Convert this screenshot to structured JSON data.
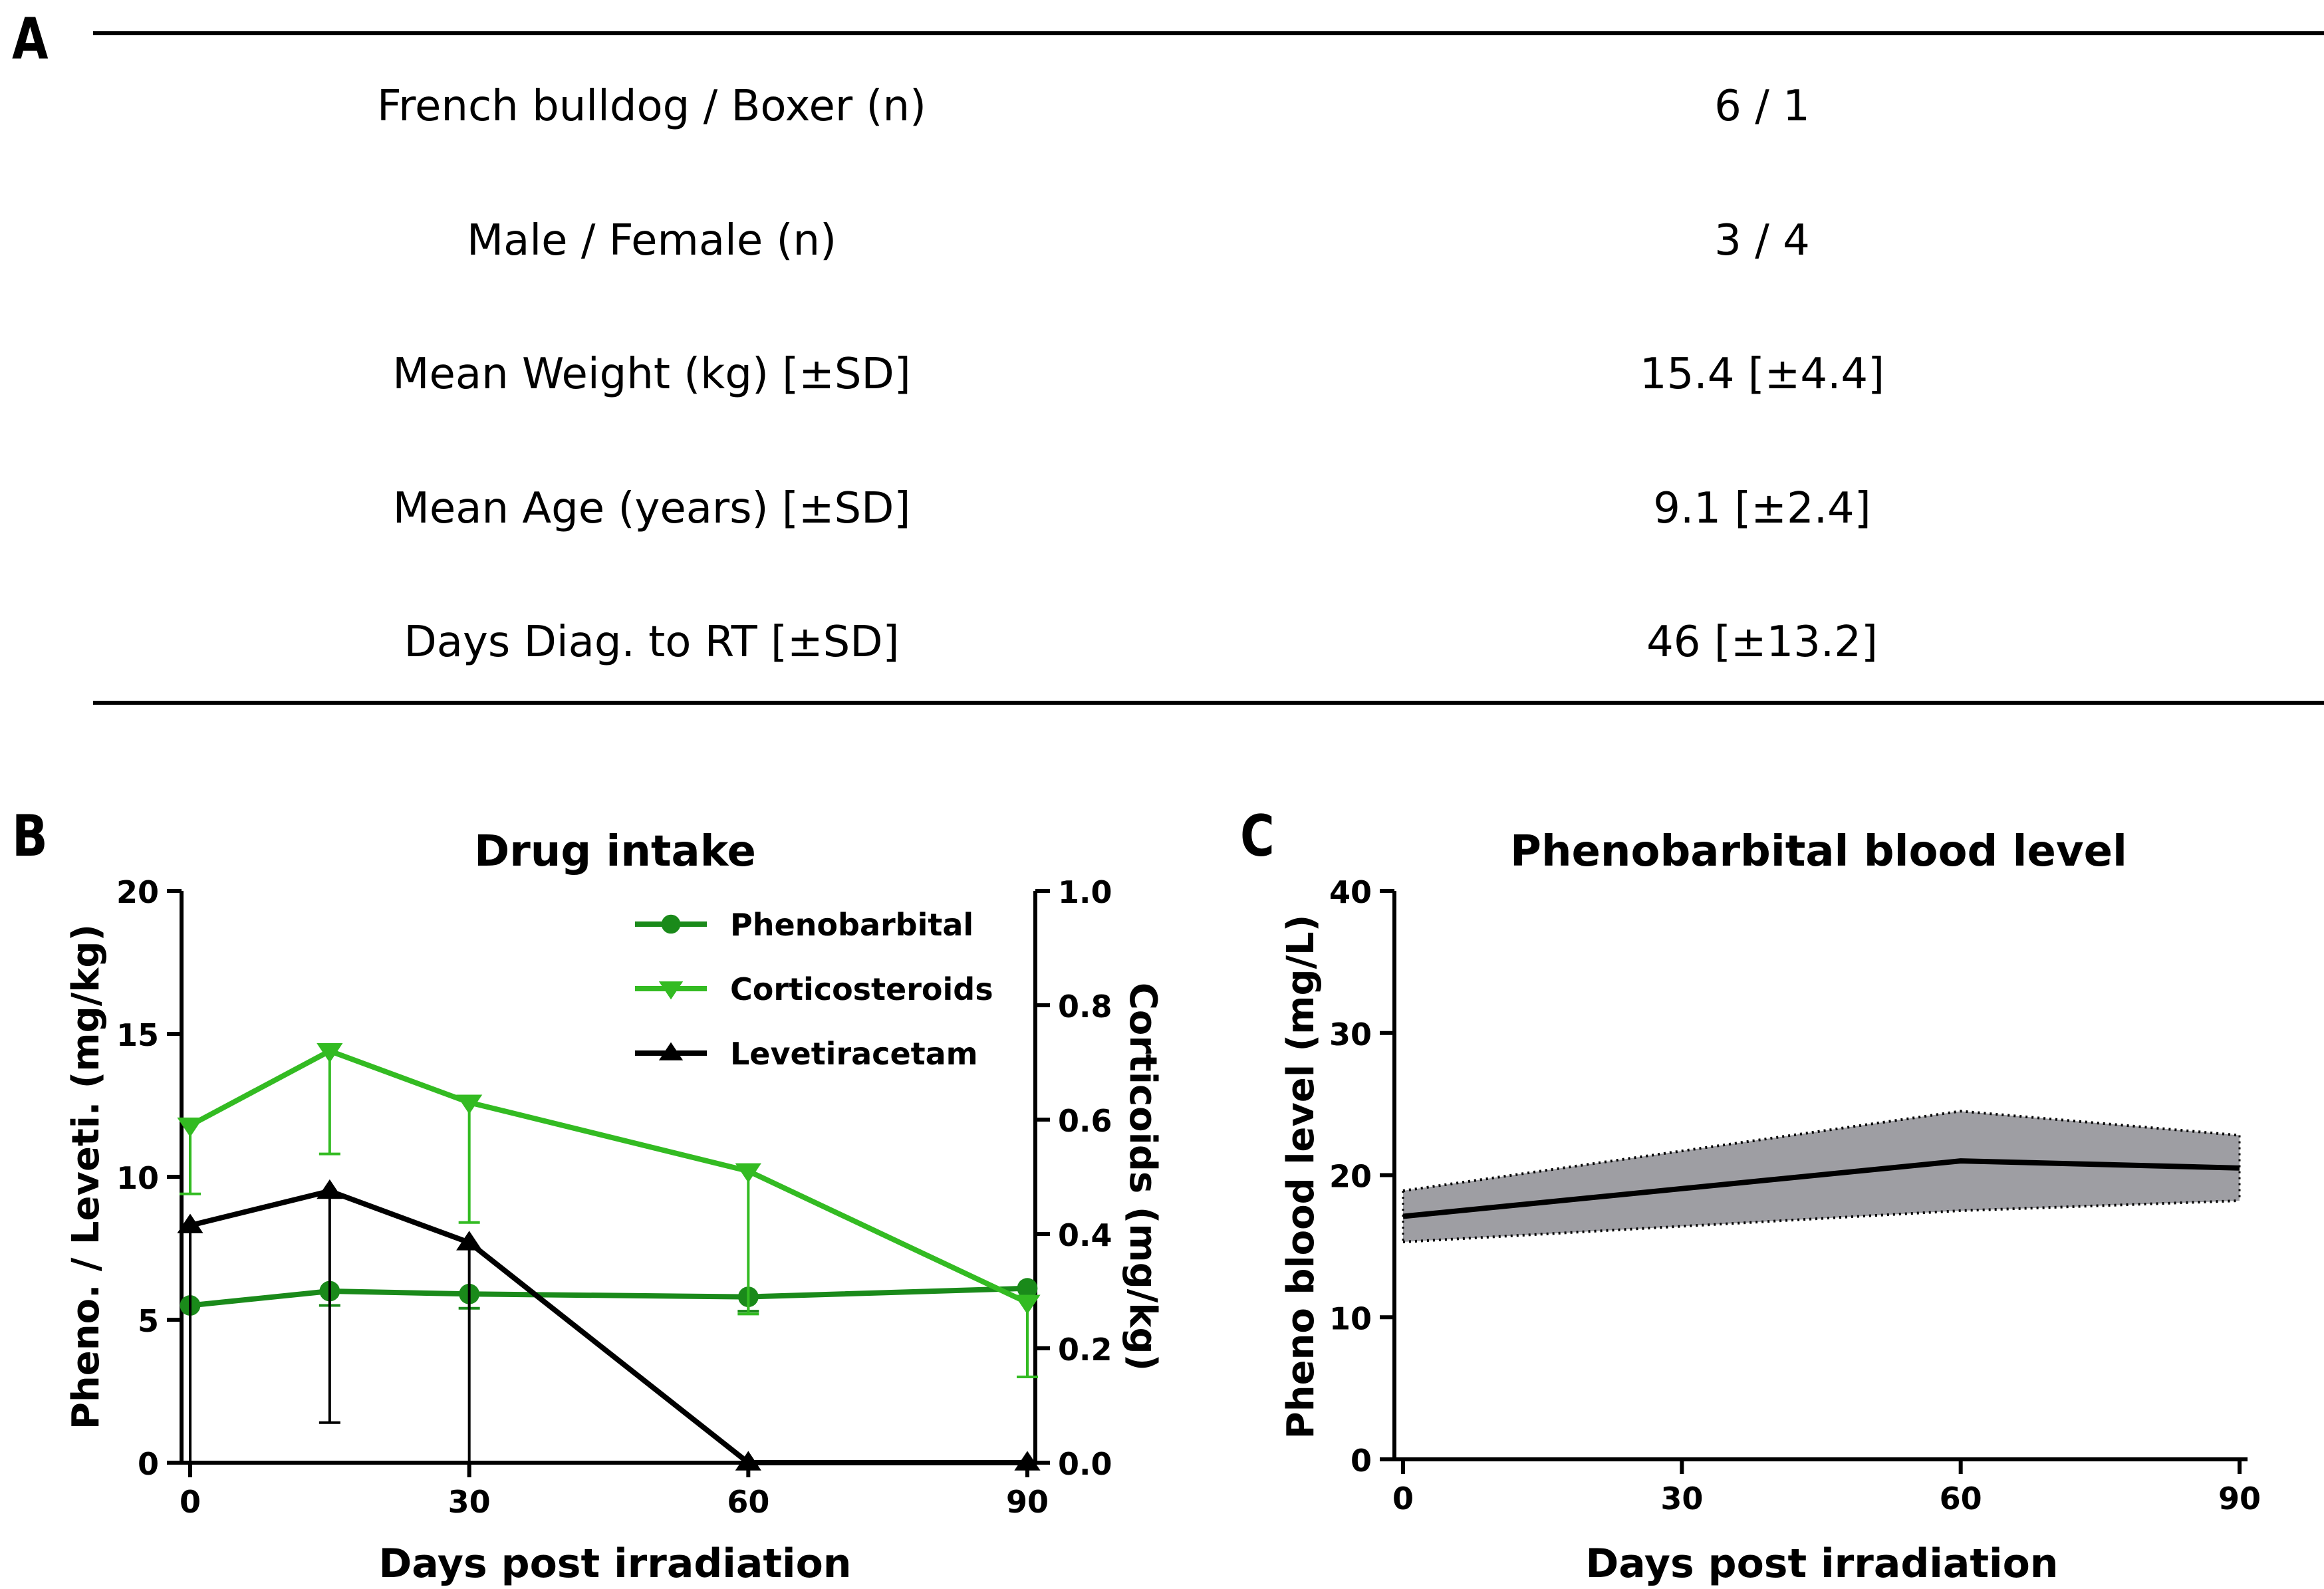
{
  "panels": {
    "a": "A",
    "b": "B",
    "c": "C"
  },
  "table": {
    "rows": [
      {
        "label": "French bulldog / Boxer (n)",
        "value": "6 / 1"
      },
      {
        "label": "Male / Female (n)",
        "value": "3 / 4"
      },
      {
        "label": "Mean Weight (kg) [±SD]",
        "value": "15.4 [±4.4]"
      },
      {
        "label": "Mean Age (years) [±SD]",
        "value": "9.1 [±2.4]"
      },
      {
        "label": "Days Diag. to RT [±SD]",
        "value": "46 [±13.2]"
      }
    ]
  },
  "colors": {
    "phenobarbital": "#1a8a1a",
    "corticosteroids": "#33bb22",
    "levetiracetam": "#000000",
    "band": "#9e9ea3"
  },
  "chart_data": [
    {
      "type": "line",
      "title": "Drug intake",
      "xlabel": "Days post irradiation",
      "ylabel": "Pheno. / Leveti. (mg/kg)",
      "y2label": "Corticoids (mg/kg)",
      "xlim": [
        0,
        90
      ],
      "ylim": [
        0,
        20
      ],
      "y2lim": [
        0,
        1.0
      ],
      "xticks": [
        "0",
        "30",
        "60",
        "90"
      ],
      "yticks": [
        "0",
        "5",
        "10",
        "15",
        "20"
      ],
      "y2ticks": [
        "0.0",
        "0.2",
        "0.4",
        "0.6",
        "0.8",
        "1.0"
      ],
      "legend_position": "top-right",
      "series": [
        {
          "name": "Phenobarbital",
          "axis": "left",
          "marker": "circle",
          "color": "#1a8a1a",
          "x": [
            0,
            15,
            30,
            60,
            90
          ],
          "y": [
            5.5,
            6.0,
            5.9,
            5.8,
            6.1
          ],
          "err_low": [
            5.5,
            5.5,
            5.4,
            5.3,
            6.1
          ],
          "err_high": [
            5.5,
            6.0,
            5.9,
            5.8,
            6.1
          ]
        },
        {
          "name": "Corticosteroids",
          "axis": "right",
          "marker": "triangle-down",
          "color": "#33bb22",
          "x": [
            0,
            15,
            30,
            60,
            90
          ],
          "y": [
            0.59,
            0.72,
            0.63,
            0.51,
            0.28
          ],
          "err_low": [
            0.47,
            0.54,
            0.42,
            0.26,
            0.15
          ],
          "err_high": [
            0.59,
            0.72,
            0.63,
            0.51,
            0.28
          ]
        },
        {
          "name": "Levetiracetam",
          "axis": "left",
          "marker": "triangle-up",
          "color": "#000000",
          "x": [
            0,
            15,
            30,
            60,
            90
          ],
          "y": [
            8.3,
            9.5,
            7.7,
            0,
            0
          ],
          "err_low": [
            0,
            1.4,
            0,
            0,
            0
          ],
          "err_high": [
            8.3,
            9.5,
            7.7,
            0,
            0
          ]
        }
      ]
    },
    {
      "type": "area",
      "title": "Phenobarbital blood level",
      "xlabel": "Days post irradiation",
      "ylabel": "Pheno blood level (mg/L)",
      "xlim": [
        0,
        90
      ],
      "ylim": [
        0,
        40
      ],
      "xticks": [
        "0",
        "30",
        "60",
        "90"
      ],
      "yticks": [
        "0",
        "10",
        "20",
        "30",
        "40"
      ],
      "series": [
        {
          "name": "mean",
          "x": [
            0,
            60,
            90
          ],
          "y": [
            17.1,
            21.0,
            20.5
          ],
          "lower": [
            15.3,
            17.5,
            18.2
          ],
          "upper": [
            18.9,
            24.5,
            22.8
          ]
        }
      ]
    }
  ]
}
